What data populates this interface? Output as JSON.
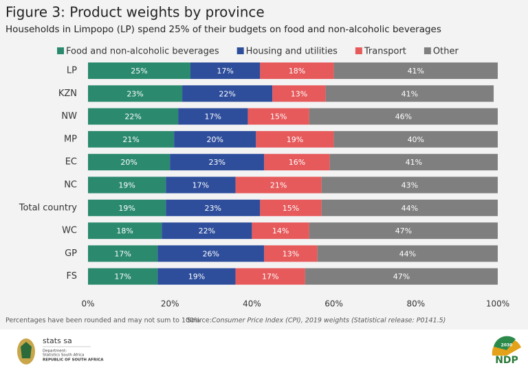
{
  "chart_data": {
    "type": "stacked-bar-horizontal",
    "title": "Figure 3: Product weights by province",
    "subtitle": "Households in Limpopo (LP) spend 25% of their budgets on food and non-alcoholic beverages",
    "categories": [
      "LP",
      "KZN",
      "NW",
      "MP",
      "EC",
      "NC",
      "Total country",
      "WC",
      "GP",
      "FS"
    ],
    "series": [
      {
        "name": "Food and non-alcoholic beverages",
        "color": "#2b8a6e",
        "values": [
          25,
          23,
          22,
          21,
          20,
          19,
          19,
          18,
          17,
          17
        ]
      },
      {
        "name": "Housing and utilities",
        "color": "#2e4e9c",
        "values": [
          17,
          22,
          17,
          20,
          23,
          17,
          23,
          22,
          26,
          19
        ]
      },
      {
        "name": "Transport",
        "color": "#e65a5c",
        "values": [
          18,
          13,
          15,
          19,
          16,
          21,
          15,
          14,
          13,
          17
        ]
      },
      {
        "name": "Other",
        "color": "#7f7f7f",
        "values": [
          41,
          41,
          46,
          40,
          41,
          43,
          44,
          47,
          44,
          47
        ]
      }
    ],
    "value_suffix_labels": true,
    "xlim": [
      0,
      100
    ],
    "xticks": [
      {
        "value": 0,
        "label": "0%"
      },
      {
        "value": 20,
        "label": "20%"
      },
      {
        "value": 40,
        "label": "40%"
      },
      {
        "value": 60,
        "label": "60%"
      },
      {
        "value": 80,
        "label": "80%"
      },
      {
        "value": 100,
        "label": "100%"
      }
    ],
    "value_labels": [
      [
        "25%",
        "23%",
        "22%",
        "21%",
        "20%",
        "19%",
        "19%",
        "18%",
        "17%",
        "17%"
      ],
      [
        "17%",
        "22%",
        "17%",
        "20%",
        "23%",
        "17%",
        "23%",
        "22%",
        "26%",
        "19%"
      ],
      [
        "18%",
        "13%",
        "15%",
        "19%",
        "16%",
        "21%",
        "15%",
        "14%",
        "13%",
        "17%"
      ],
      [
        "41%",
        "41%",
        "46%",
        "40%",
        "41%",
        "43%",
        "44%",
        "47%",
        "44%",
        "47%"
      ]
    ],
    "legend": "top",
    "note": "Percentages have been rounded and may not sum to 100%",
    "source_label": "Source:",
    "source_text": "Consumer Price Index (CPI), 2019 weights (Statistical release: P0141.5)"
  },
  "logos": {
    "stats_name": "stats sa",
    "department": "Department:",
    "department_name": "Statistics South Africa",
    "country": "REPUBLIC OF SOUTH AFRICA",
    "ndp": "NDP",
    "ndp_year": "2030"
  }
}
